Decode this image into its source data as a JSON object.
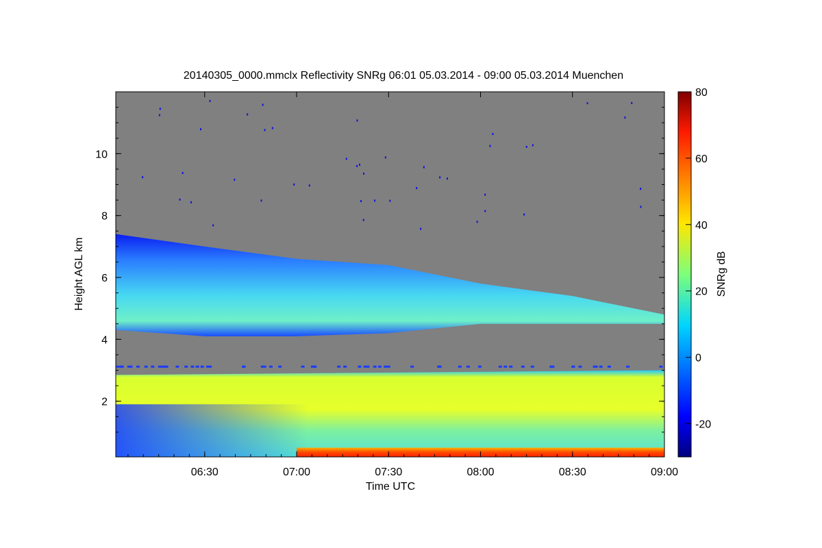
{
  "chart_data": {
    "type": "heatmap",
    "title": "20140305_0000.mmclx Reflectivity SNRg   06:01 05.03.2014 - 09:00 05.03.2014 Muenchen",
    "xlabel": "Time UTC",
    "ylabel": "Height AGL km",
    "colorbar_label": "SNRg dB",
    "xlim": [
      "06:01",
      "09:00"
    ],
    "ylim": [
      0.2,
      12.0
    ],
    "x_ticks": [
      "06:30",
      "07:00",
      "07:30",
      "08:00",
      "08:30",
      "09:00"
    ],
    "y_ticks": [
      2,
      4,
      6,
      8,
      10
    ],
    "colorbar_range": [
      -30,
      80
    ],
    "colorbar_ticks": [
      -20,
      0,
      20,
      40,
      60,
      80
    ],
    "colormap": "jet",
    "background_color": "#808080",
    "layers": [
      {
        "name": "upper cloud",
        "x": [
          "06:01",
          "06:30",
          "07:00",
          "07:30",
          "08:00",
          "08:30",
          "09:00"
        ],
        "top_km": [
          7.4,
          7.0,
          6.6,
          6.4,
          5.8,
          5.4,
          4.8
        ],
        "base_km": [
          4.3,
          4.1,
          4.1,
          4.2,
          4.5,
          4.5,
          4.5
        ],
        "snr_db": [
          5,
          8,
          4,
          2,
          0,
          0,
          -5
        ]
      },
      {
        "name": "lower layer",
        "x": [
          "06:01",
          "09:00"
        ],
        "top_km": [
          2.85,
          3.0
        ],
        "base_km": [
          0.2,
          0.2
        ],
        "snr_db": [
          25,
          35
        ]
      },
      {
        "name": "near-surface layer",
        "x": [
          "07:00",
          "09:00"
        ],
        "top_km": [
          0.5,
          0.5
        ],
        "base_km": [
          0.2,
          0.2
        ],
        "snr_db": [
          55,
          60
        ]
      }
    ]
  }
}
